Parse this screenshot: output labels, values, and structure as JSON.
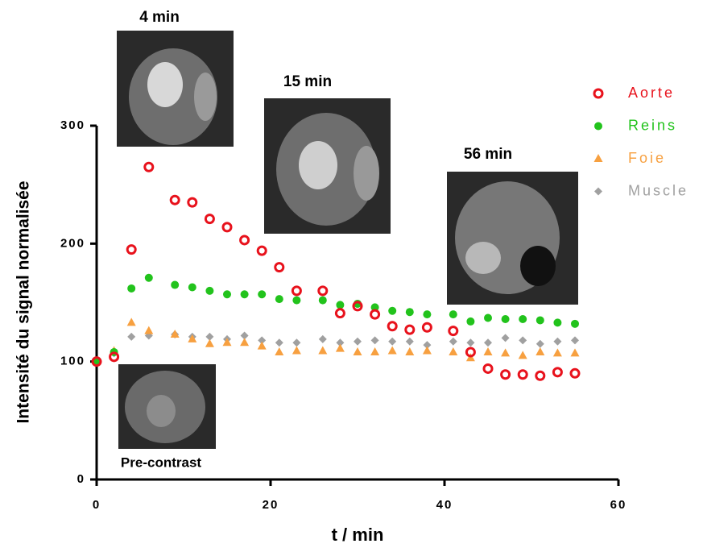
{
  "chart_data": {
    "type": "scatter",
    "x_label": "t / min",
    "y_label": "Intensité du signal normalisée",
    "annotations": [
      "4 min",
      "15 min",
      "56 min",
      "Pre-contrast"
    ],
    "x": [
      0,
      2,
      4,
      6,
      9,
      11,
      13,
      15,
      17,
      19,
      21,
      23,
      26,
      28,
      30,
      32,
      34,
      36,
      38,
      41,
      43,
      45,
      47,
      49,
      51,
      53,
      55
    ],
    "series": [
      {
        "name": "Aorte",
        "color": "#e8121c",
        "marker": "circle-open",
        "values": [
          100,
          104,
          195,
          265,
          237,
          235,
          221,
          214,
          203,
          194,
          180,
          160,
          160,
          141,
          147,
          140,
          130,
          127,
          129,
          126,
          108,
          94,
          89,
          89,
          88,
          91,
          90
        ]
      },
      {
        "name": "Reins",
        "color": "#22c31c",
        "marker": "circle",
        "values": [
          100,
          108,
          162,
          171,
          165,
          163,
          160,
          157,
          157,
          157,
          153,
          152,
          152,
          148,
          149,
          146,
          143,
          142,
          140,
          140,
          134,
          137,
          136,
          136,
          135,
          133,
          132
        ]
      },
      {
        "name": "Foie",
        "color": "#f7a040",
        "marker": "triangle",
        "values": [
          100,
          109,
          133,
          126,
          123,
          119,
          115,
          116,
          116,
          113,
          108,
          109,
          109,
          111,
          108,
          108,
          109,
          108,
          109,
          108,
          103,
          108,
          107,
          105,
          108,
          107,
          107
        ]
      },
      {
        "name": "Muscle",
        "color": "#a0a0a0",
        "marker": "diamond",
        "values": [
          100,
          107,
          121,
          122,
          123,
          121,
          121,
          119,
          122,
          118,
          116,
          116,
          119,
          116,
          117,
          118,
          117,
          117,
          114,
          117,
          116,
          116,
          120,
          118,
          115,
          117,
          118
        ]
      }
    ],
    "xlim": [
      0,
      60
    ],
    "xticks": [
      0,
      20,
      40,
      60
    ],
    "ylim": [
      0,
      300
    ],
    "yticks": [
      0,
      100,
      200,
      300
    ]
  }
}
